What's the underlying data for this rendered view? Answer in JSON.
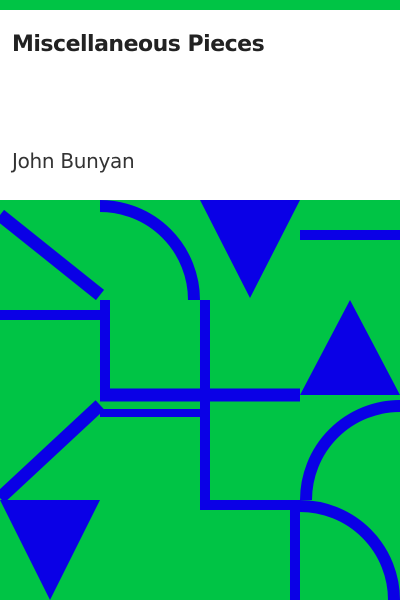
{
  "book": {
    "title": "Miscellaneous Pieces",
    "author": "John Bunyan"
  },
  "colors": {
    "background": "#00c445",
    "accent": "#0a00e6",
    "header": "#ffffff",
    "text": "#222222"
  },
  "cover_art": {
    "pattern": "tiled-geometric",
    "shapes": [
      "quarter-arc",
      "triangle",
      "straight-line"
    ]
  }
}
